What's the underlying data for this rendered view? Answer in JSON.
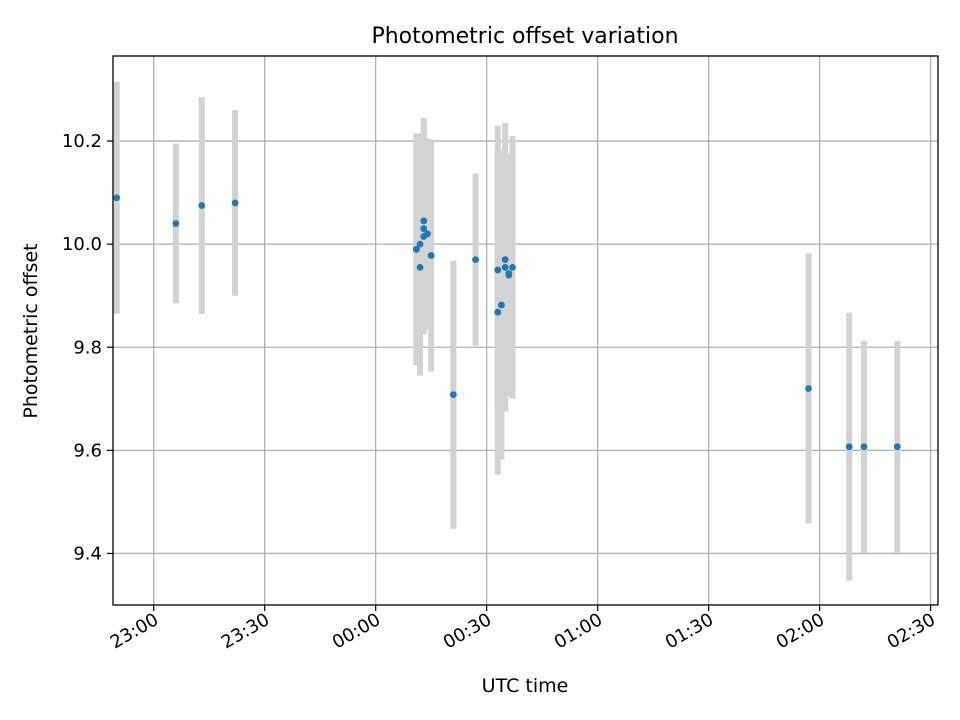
{
  "chart_data": {
    "type": "scatter",
    "title": "Photometric offset variation",
    "xlabel": "UTC time",
    "ylabel": "Photometric offset",
    "x_tick_labels": [
      "23:00",
      "23:30",
      "00:00",
      "00:30",
      "01:00",
      "01:30",
      "02:00",
      "02:30"
    ],
    "y_tick_labels": [
      "9.4",
      "9.6",
      "9.8",
      "10.0",
      "10.2"
    ],
    "y_ticks": [
      9.4,
      9.6,
      9.8,
      10.0,
      10.2
    ],
    "xlim": [
      "22:49",
      "02:32"
    ],
    "ylim": [
      9.3,
      10.365
    ],
    "grid": true,
    "marker_color": "#1f77b4",
    "errorbar_color": "#d3d3d3",
    "points": [
      {
        "t": "22:50",
        "y": 10.09,
        "err": 0.225
      },
      {
        "t": "23:06",
        "y": 10.04,
        "err": 0.155
      },
      {
        "t": "23:13",
        "y": 10.075,
        "err": 0.21
      },
      {
        "t": "23:22",
        "y": 10.08,
        "err": 0.18
      },
      {
        "t": "00:11",
        "y": 9.99,
        "err": 0.225
      },
      {
        "t": "00:11",
        "y": 9.99,
        "err": 0.22
      },
      {
        "t": "00:12",
        "y": 9.955,
        "err": 0.21
      },
      {
        "t": "00:12",
        "y": 10.0,
        "err": 0.215
      },
      {
        "t": "00:13",
        "y": 10.03,
        "err": 0.2
      },
      {
        "t": "00:13",
        "y": 10.045,
        "err": 0.2
      },
      {
        "t": "00:13",
        "y": 10.015,
        "err": 0.19
      },
      {
        "t": "00:14",
        "y": 10.02,
        "err": 0.185
      },
      {
        "t": "00:15",
        "y": 9.978,
        "err": 0.225
      },
      {
        "t": "00:21",
        "y": 9.708,
        "err": 0.26
      },
      {
        "t": "00:27",
        "y": 9.97,
        "err": 0.167
      },
      {
        "t": "00:33",
        "y": 9.95,
        "err": 0.28
      },
      {
        "t": "00:33",
        "y": 9.868,
        "err": 0.315
      },
      {
        "t": "00:34",
        "y": 9.882,
        "err": 0.3
      },
      {
        "t": "00:35",
        "y": 9.955,
        "err": 0.28
      },
      {
        "t": "00:35",
        "y": 9.97,
        "err": 0.2
      },
      {
        "t": "00:36",
        "y": 9.943,
        "err": 0.23
      },
      {
        "t": "00:36",
        "y": 9.94,
        "err": 0.235
      },
      {
        "t": "00:37",
        "y": 9.955,
        "err": 0.255
      },
      {
        "t": "01:57",
        "y": 9.72,
        "err": 0.262
      },
      {
        "t": "02:08",
        "y": 9.607,
        "err": 0.26
      },
      {
        "t": "02:12",
        "y": 9.607,
        "err": 0.205
      },
      {
        "t": "02:21",
        "y": 9.607,
        "err": 0.205
      }
    ]
  }
}
